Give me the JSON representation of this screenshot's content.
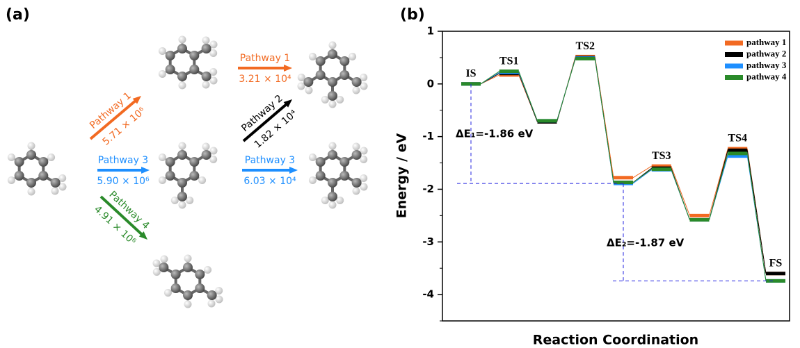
{
  "panel_a": {
    "label": "(a)",
    "arrows": [
      {
        "pathway": "Pathway 1",
        "rate": "5.71 × 10⁶"
      },
      {
        "pathway": "Pathway 1",
        "rate": "3.21 × 10⁴"
      },
      {
        "pathway": "Pathway 2",
        "rate": "1.82 × 10⁴"
      },
      {
        "pathway": "Pathway 3",
        "rate": "5.90 × 10⁶"
      },
      {
        "pathway": "Pathway 3",
        "rate": "6.03 × 10⁴"
      },
      {
        "pathway": "Pathway 4",
        "rate": "4.91 × 10⁶"
      }
    ]
  },
  "chart_data": {
    "type": "energy_profile",
    "panel_label": "(b)",
    "xlabel": "Reaction Coordination",
    "ylabel": "Energy / eV",
    "categories": [
      "IS",
      "TS1",
      null,
      "TS2",
      null,
      "TS3",
      null,
      "TS4",
      "FS"
    ],
    "series": [
      {
        "name": "pathway 1",
        "color": "#f26a22",
        "values": [
          0,
          0.17,
          -0.72,
          0.52,
          -1.78,
          -1.56,
          -2.5,
          -1.23,
          -3.6
        ]
      },
      {
        "name": "pathway 2",
        "color": "#000000",
        "values": [
          0,
          0.2,
          -0.72,
          0.5,
          -1.87,
          -1.6,
          -2.58,
          -1.26,
          -3.6
        ]
      },
      {
        "name": "pathway 3",
        "color": "#1e8fff",
        "values": [
          0,
          0.22,
          -0.7,
          0.49,
          -1.89,
          -1.63,
          -2.58,
          -1.37,
          -3.74
        ]
      },
      {
        "name": "pathway 4",
        "color": "#2a8a2a",
        "values": [
          0,
          0.24,
          -0.7,
          0.48,
          -1.87,
          -1.62,
          -2.58,
          -1.32,
          -3.74
        ]
      }
    ],
    "ylim": [
      -4.5,
      1
    ],
    "yticks": [
      1,
      0,
      -1,
      -2,
      -3,
      -4
    ],
    "annotations": [
      "ΔE₁=-1.86 eV",
      "ΔE₂=-1.87 eV"
    ],
    "legend": "upper right"
  }
}
